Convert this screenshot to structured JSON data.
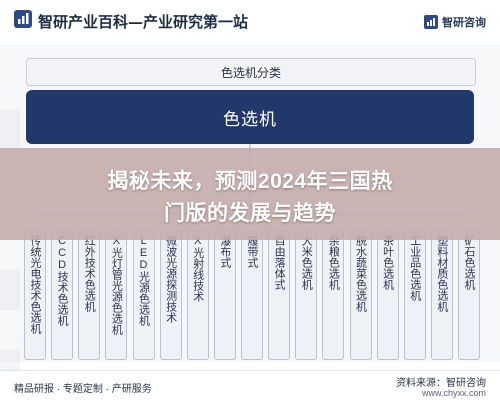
{
  "header": {
    "title": "智研产业百科—产业研究第一站",
    "brand": "智研咨询"
  },
  "diagram": {
    "classification_label": "色选机分类",
    "root_node": "色选机",
    "categories": [
      "传统光电技术色选机",
      "CCD技术色选机",
      "红外技术色选机",
      "X光灯管光源色选机",
      "LED光源色选机",
      "微波光源探测技术",
      "X光射线技术",
      "瀑布式",
      "履带式",
      "自由落体式",
      "大米色选机",
      "杂粮色选机",
      "脱水蔬菜色选机",
      "茶叶色选机",
      "工业品色选机",
      "塑料材质色选机",
      "矿石色选机"
    ]
  },
  "banner": {
    "line1": "揭秘未来，预测2024年三国热",
    "line2": "门版的发展与趋势"
  },
  "footer": {
    "left": "精品研报 · 专题定制 · 产研服务",
    "right_top": "资料来源：智研咨询",
    "right_bottom": "www.chyxx.com"
  },
  "colors": {
    "root_bar": "#22386b",
    "banner": "#c4aaa8",
    "header_text": "#1f2d44"
  }
}
